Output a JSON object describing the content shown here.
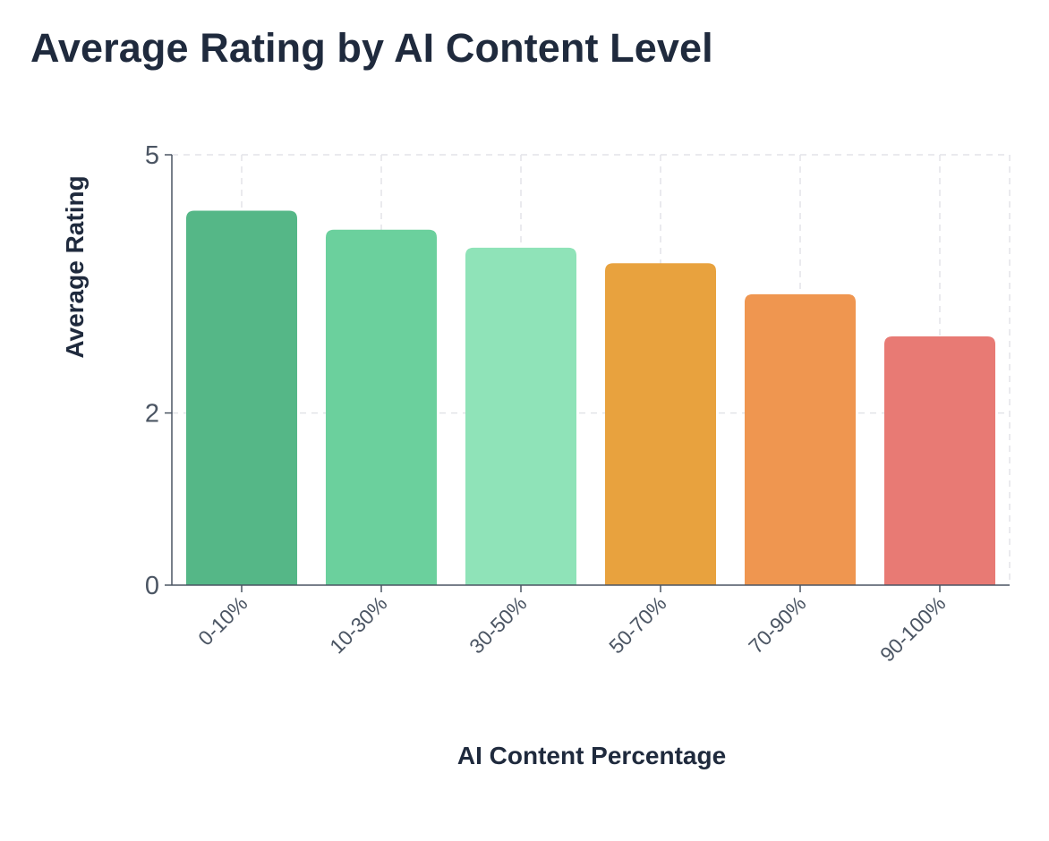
{
  "chart_data": {
    "type": "bar",
    "title": "Average Rating by AI Content Level",
    "xlabel": "AI Content Percentage",
    "ylabel": "Average Rating",
    "categories": [
      "0-10%",
      "10-30%",
      "30-50%",
      "50-70%",
      "70-90%",
      "90-100%"
    ],
    "values": [
      4.35,
      4.13,
      3.92,
      3.74,
      3.38,
      2.89
    ],
    "colors": [
      "#55b787",
      "#6bd09d",
      "#8fe3b8",
      "#e8a23e",
      "#ef9650",
      "#e87a74"
    ],
    "yticks": [
      0,
      2,
      5
    ],
    "ylim": [
      0,
      5
    ],
    "grid": true,
    "legend": "none"
  }
}
